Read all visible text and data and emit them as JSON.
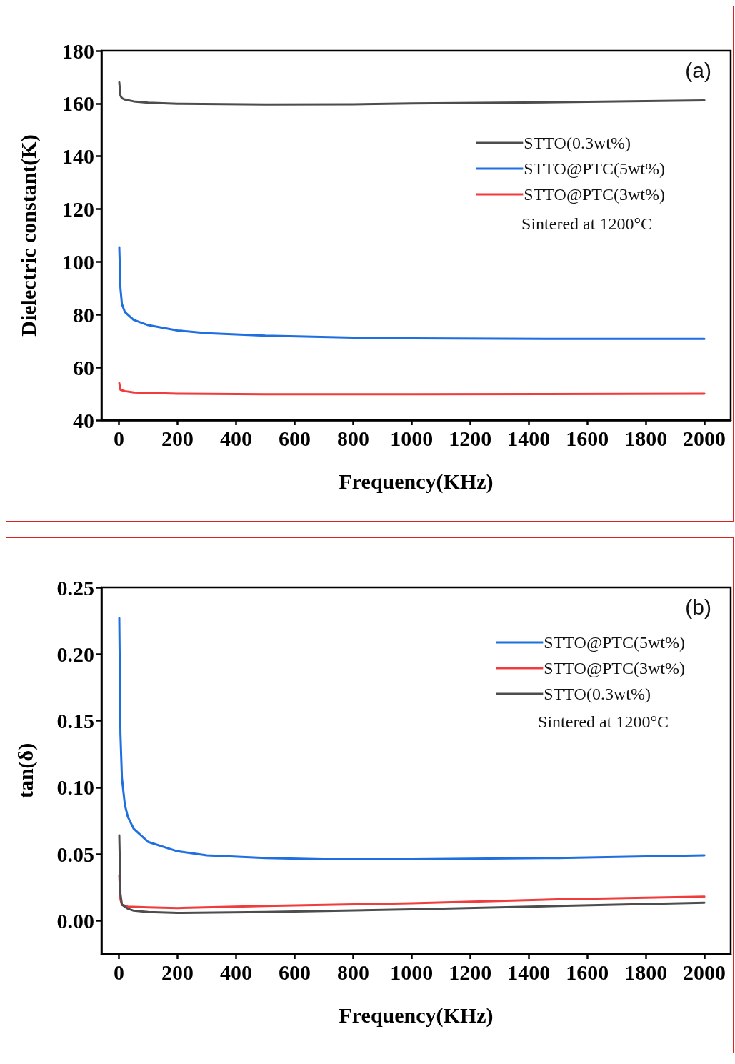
{
  "chart_data": [
    {
      "type": "line",
      "xlabel": "Frequency(KHz)",
      "ylabel": "Dielectric constant(K)",
      "xlim": [
        -60,
        2090
      ],
      "ylim": [
        40,
        180
      ],
      "xticks": [
        0,
        200,
        400,
        600,
        800,
        1000,
        1200,
        1400,
        1600,
        1800,
        2000
      ],
      "yticks": [
        40,
        60,
        80,
        100,
        120,
        140,
        160,
        180
      ],
      "legend": "top right",
      "grid": false,
      "marker": "none",
      "line_style": "solid",
      "annotations": [
        "(a)",
        "Sintered at 1200°C"
      ],
      "series": [
        {
          "name": "STTO(0.3wt%)",
          "color": "#4d4d4d",
          "x": [
            1,
            5,
            10,
            20,
            50,
            100,
            200,
            500,
            800,
            1000,
            1500,
            2000
          ],
          "values": [
            168,
            163,
            162,
            161.5,
            160.8,
            160.3,
            159.9,
            159.6,
            159.7,
            160,
            160.5,
            161.2
          ]
        },
        {
          "name": "STTO@PTC(5wt%)",
          "color": "#1f6fe0",
          "x": [
            1,
            5,
            10,
            20,
            50,
            100,
            200,
            300,
            500,
            800,
            1000,
            1500,
            2000
          ],
          "values": [
            105.5,
            90,
            84,
            81,
            78,
            76,
            74,
            73,
            72,
            71.3,
            71,
            70.8,
            70.8
          ]
        },
        {
          "name": "STTO@PTC(3wt%)",
          "color": "#f03c3c",
          "x": [
            1,
            5,
            20,
            50,
            200,
            500,
            1000,
            2000
          ],
          "values": [
            54,
            51.5,
            51,
            50.5,
            50,
            49.8,
            49.8,
            50
          ]
        }
      ]
    },
    {
      "type": "line",
      "xlabel": "Frequency(KHz)",
      "ylabel": "tan(δ)",
      "xlim": [
        -60,
        2090
      ],
      "ylim": [
        -0.025,
        0.25
      ],
      "xticks": [
        0,
        200,
        400,
        600,
        800,
        1000,
        1200,
        1400,
        1600,
        1800,
        2000
      ],
      "yticks": [
        {
          "value": 0,
          "label": "0.00"
        },
        {
          "value": 0.05,
          "label": "0.05"
        },
        {
          "value": 0.1,
          "label": "0.10"
        },
        {
          "value": 0.15,
          "label": "0.15"
        },
        {
          "value": 0.2,
          "label": "0.20"
        },
        {
          "value": 0.25,
          "label": "0.25"
        }
      ],
      "legend": "top right",
      "grid": false,
      "marker": "none",
      "line_style": "solid",
      "annotations": [
        "(b)",
        "Sintered at 1200°C"
      ],
      "series": [
        {
          "name": "STTO@PTC(5wt%)",
          "color": "#1f6fe0",
          "x": [
            1,
            5,
            10,
            20,
            30,
            50,
            100,
            200,
            300,
            500,
            700,
            1000,
            1500,
            2000
          ],
          "values": [
            0.227,
            0.14,
            0.107,
            0.087,
            0.078,
            0.069,
            0.059,
            0.052,
            0.049,
            0.047,
            0.046,
            0.046,
            0.047,
            0.049
          ]
        },
        {
          "name": "STTO@PTC(3wt%)",
          "color": "#f03c3c",
          "x": [
            1,
            5,
            10,
            30,
            100,
            200,
            500,
            1000,
            1500,
            2000
          ],
          "values": [
            0.034,
            0.016,
            0.012,
            0.0105,
            0.01,
            0.0095,
            0.011,
            0.013,
            0.016,
            0.018
          ]
        },
        {
          "name": "STTO(0.3wt%)",
          "color": "#4d4d4d",
          "x": [
            1,
            5,
            10,
            30,
            50,
            100,
            200,
            500,
            1000,
            1500,
            2000
          ],
          "values": [
            0.064,
            0.02,
            0.012,
            0.009,
            0.0075,
            0.0065,
            0.0058,
            0.0065,
            0.0085,
            0.011,
            0.0135
          ]
        }
      ]
    }
  ]
}
